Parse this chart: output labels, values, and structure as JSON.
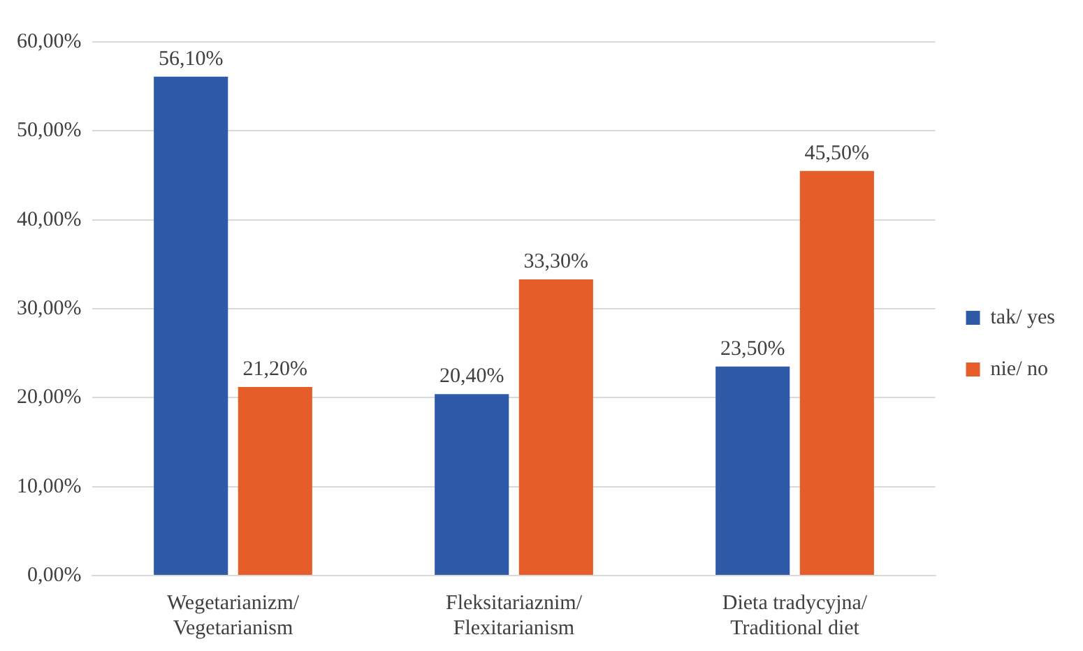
{
  "chart_data": {
    "type": "bar",
    "categories": [
      "Wegetarianizm/\nVegetarianism",
      "Fleksitariaznim/\nFlexitarianism",
      "Dieta tradycyjna/\nTraditional diet"
    ],
    "series": [
      {
        "name": "tak/ yes",
        "color": "#2e5aa8",
        "values": [
          56.1,
          20.4,
          23.5
        ],
        "value_labels": [
          "56,10%",
          "20,40%",
          "23,50%"
        ]
      },
      {
        "name": "nie/ no",
        "color": "#e55e29",
        "values": [
          21.2,
          33.3,
          45.5
        ],
        "value_labels": [
          "21,20%",
          "33,30%",
          "45,50%"
        ]
      }
    ],
    "ylim": [
      0,
      60
    ],
    "yticks": [
      {
        "value": 0,
        "label": "0,00%"
      },
      {
        "value": 10,
        "label": "10,00%"
      },
      {
        "value": 20,
        "label": "20,00%"
      },
      {
        "value": 30,
        "label": "30,00%"
      },
      {
        "value": 40,
        "label": "40,00%"
      },
      {
        "value": 50,
        "label": "50,00%"
      },
      {
        "value": 60,
        "label": "60,00%"
      }
    ],
    "grid": "y",
    "legend": "right"
  }
}
